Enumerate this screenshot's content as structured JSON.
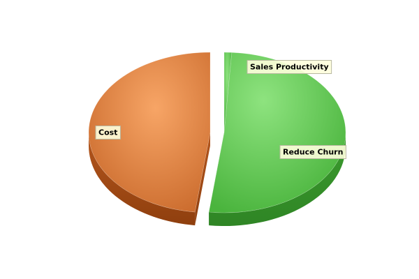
{
  "chart_data": {
    "type": "pie",
    "title": "",
    "slices": [
      {
        "label": "Sales Productivity",
        "value": 1,
        "color": "#5cc24e"
      },
      {
        "label": "Reduce Churn",
        "value": 51,
        "color": "#5cc24e"
      },
      {
        "label": "Cost",
        "value": 48,
        "color": "#e6884a"
      }
    ],
    "style": "3d-exploded",
    "legend": "none",
    "label_box_color": "#fefedc"
  }
}
